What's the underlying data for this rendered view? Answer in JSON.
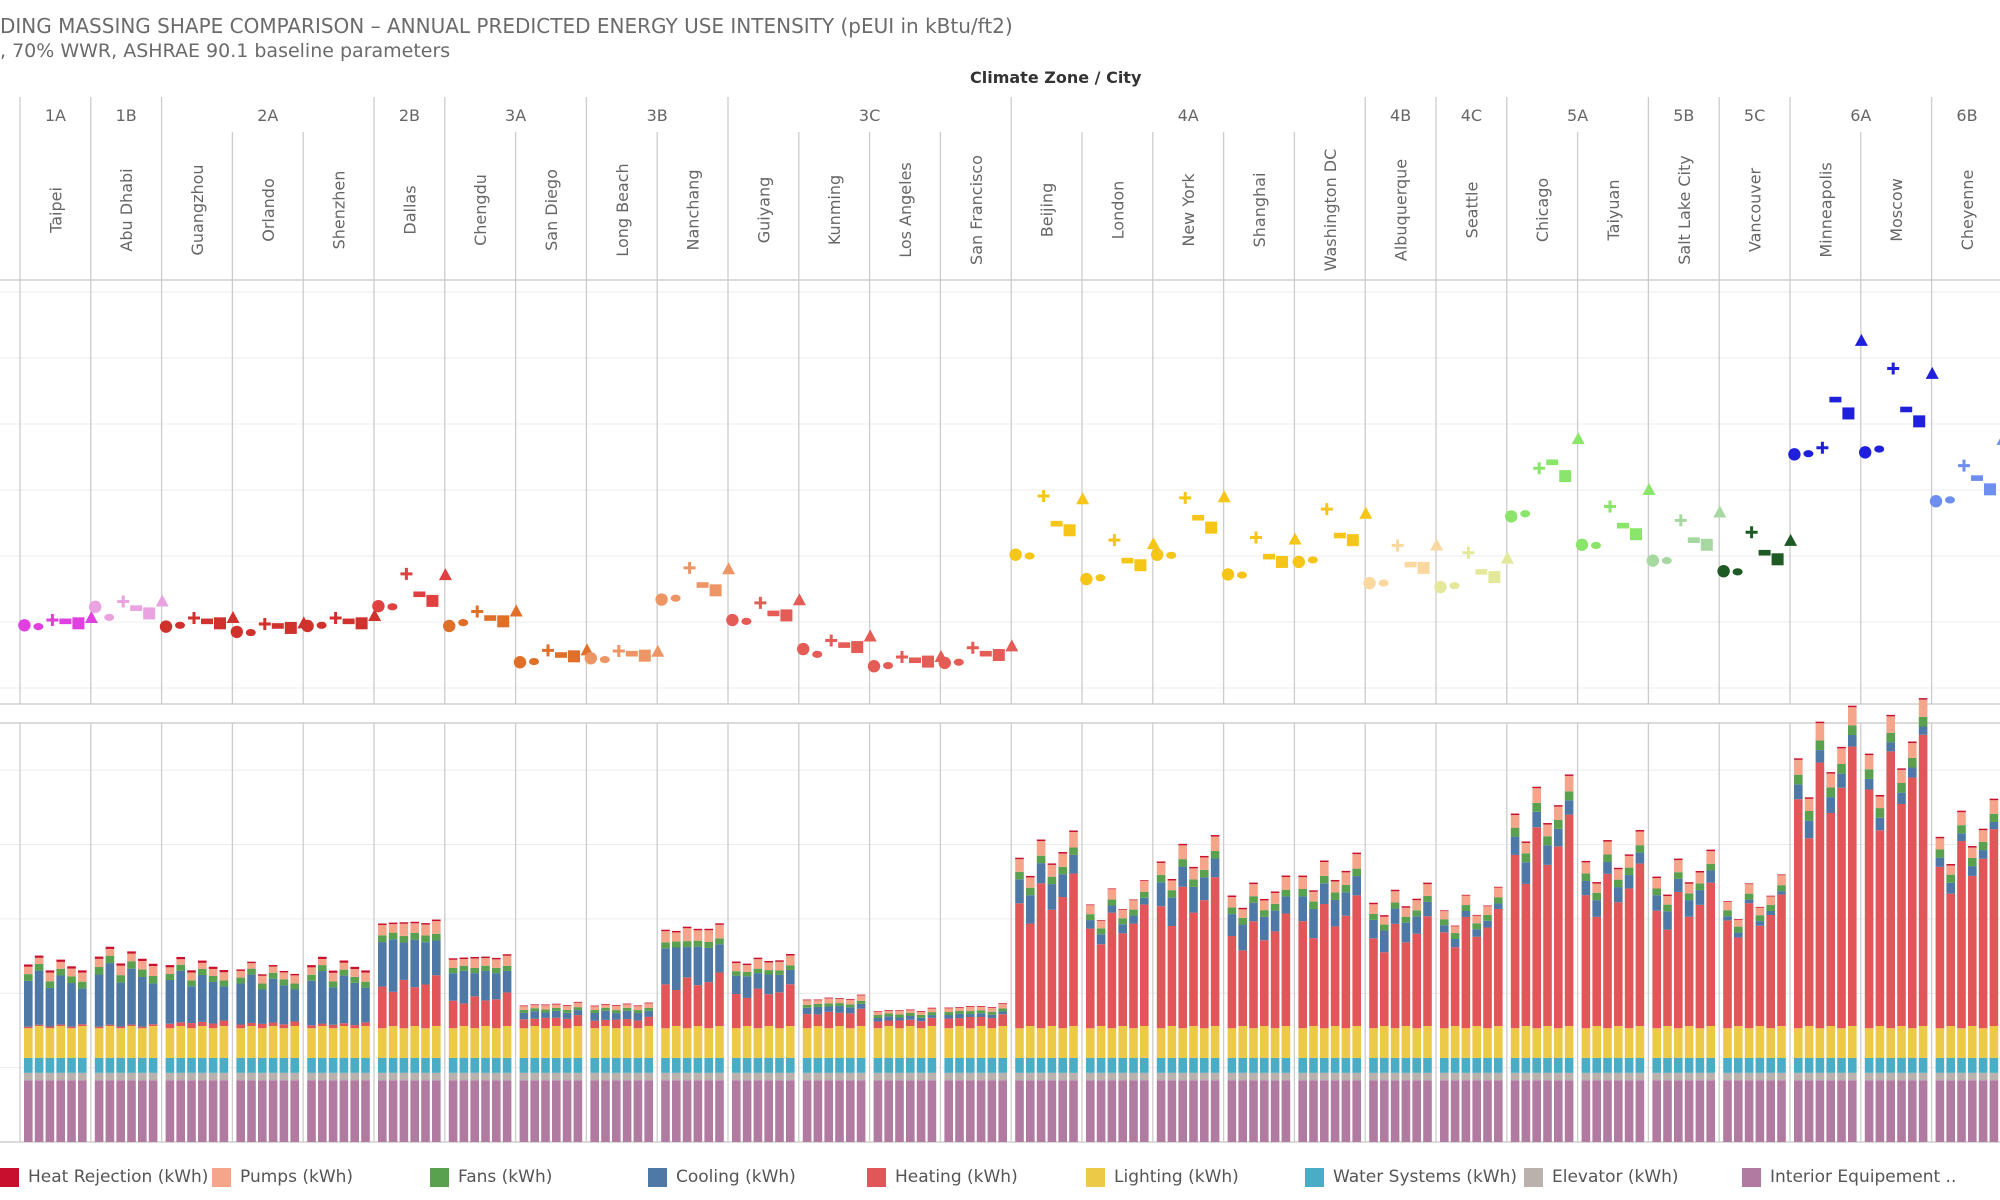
{
  "header": {
    "title": "DING MASSING SHAPE COMPARISON – ANNUAL PREDICTED ENERGY USE INTENSITY (pEUI in kBtu/ft2)",
    "subtitle": ", 70% WWR, ASHRAE 90.1 baseline parameters",
    "column_header": "Climate Zone  /  City"
  },
  "legend": [
    {
      "label": "Heat Rejection (kWh)",
      "color": "#c8102e"
    },
    {
      "label": "Pumps (kWh)",
      "color": "#f4a58a"
    },
    {
      "label": "Fans (kWh)",
      "color": "#59a14f"
    },
    {
      "label": "Cooling (kWh)",
      "color": "#4e79a7"
    },
    {
      "label": "Heating (kWh)",
      "color": "#e15759"
    },
    {
      "label": "Lighting (kWh)",
      "color": "#edc948"
    },
    {
      "label": "Water Systems (kWh)",
      "color": "#4bacc6"
    },
    {
      "label": "Elevator (kWh)",
      "color": "#bab0ac"
    },
    {
      "label": "Interior Equipement ..",
      "color": "#b07aa1"
    }
  ],
  "chart_data": {
    "type": "scatter+stacked-bar",
    "climate_zones": [
      {
        "zone": "1A",
        "cities": [
          "Taipei"
        ]
      },
      {
        "zone": "1B",
        "cities": [
          "Abu Dhabi"
        ]
      },
      {
        "zone": "2A",
        "cities": [
          "Guangzhou",
          "Orlando",
          "Shenzhen"
        ]
      },
      {
        "zone": "2B",
        "cities": [
          "Dallas"
        ]
      },
      {
        "zone": "3A",
        "cities": [
          "Chengdu",
          "San Diego"
        ]
      },
      {
        "zone": "3B",
        "cities": [
          "Long Beach",
          "Nanchang"
        ]
      },
      {
        "zone": "3C",
        "cities": [
          "Guiyang",
          "Kunming",
          "Los Angeles",
          "San Francisco"
        ]
      },
      {
        "zone": "4A",
        "cities": [
          "Beijing",
          "London",
          "New York",
          "Shanghai",
          "Washington DC"
        ]
      },
      {
        "zone": "4B",
        "cities": [
          "Albuquerque"
        ]
      },
      {
        "zone": "4C",
        "cities": [
          "Seattle"
        ]
      },
      {
        "zone": "5A",
        "cities": [
          "Chicago",
          "Taiyuan"
        ]
      },
      {
        "zone": "5B",
        "cities": [
          "Salt Lake City"
        ]
      },
      {
        "zone": "5C",
        "cities": [
          "Vancouver"
        ]
      },
      {
        "zone": "6A",
        "cities": [
          "Minneapolis",
          "Moscow"
        ]
      },
      {
        "zone": "6B",
        "cities": [
          "Cheyenne"
        ]
      }
    ],
    "shape_markers": [
      "circle",
      "ellipse",
      "plus",
      "dash",
      "square",
      "triangle"
    ],
    "scatter_eui": [
      {
        "city": "Taipei",
        "color": "#e040e0",
        "values": [
          19.5,
          19.3,
          20.3,
          20.1,
          19.8,
          20.6
        ]
      },
      {
        "city": "Abu Dhabi",
        "color": "#e9a3e0",
        "values": [
          22.3,
          20.7,
          23.1,
          22.1,
          21.3,
          23.1
        ]
      },
      {
        "city": "Guangzhou",
        "color": "#d0312d",
        "values": [
          19.3,
          19.5,
          20.6,
          20.1,
          19.8,
          20.6
        ]
      },
      {
        "city": "Orlando",
        "color": "#d0312d",
        "values": [
          18.5,
          18.4,
          19.7,
          19.4,
          19.1,
          19.8
        ]
      },
      {
        "city": "Shenzhen",
        "color": "#d0312d",
        "values": [
          19.4,
          19.5,
          20.6,
          20.1,
          19.8,
          20.9
        ]
      },
      {
        "city": "Dallas",
        "color": "#e04040",
        "values": [
          22.4,
          22.3,
          27.3,
          24.2,
          23.2,
          27.1
        ]
      },
      {
        "city": "Chengdu",
        "color": "#e06f2a",
        "values": [
          19.4,
          19.9,
          21.6,
          20.6,
          20.1,
          21.6
        ]
      },
      {
        "city": "San Diego",
        "color": "#e06f2a",
        "values": [
          13.9,
          14.0,
          15.7,
          15.0,
          14.8,
          15.7
        ]
      },
      {
        "city": "Long Beach",
        "color": "#ee9566",
        "values": [
          14.5,
          14.3,
          15.6,
          15.2,
          14.9,
          15.5
        ]
      },
      {
        "city": "Nanchang",
        "color": "#ee9566",
        "values": [
          23.4,
          23.6,
          28.2,
          25.6,
          24.8,
          28.0
        ]
      },
      {
        "city": "Guiyang",
        "color": "#e55b55",
        "values": [
          20.3,
          20.1,
          22.9,
          21.3,
          21.0,
          23.3
        ]
      },
      {
        "city": "Kunming",
        "color": "#e55b55",
        "values": [
          15.9,
          15.1,
          17.2,
          16.5,
          16.2,
          17.8
        ]
      },
      {
        "city": "Los Angeles",
        "color": "#e55b55",
        "values": [
          13.3,
          13.4,
          14.7,
          14.2,
          14.0,
          14.7
        ]
      },
      {
        "city": "San Francisco",
        "color": "#e55b55",
        "values": [
          13.8,
          13.9,
          16.1,
          15.2,
          15.0,
          16.3
        ]
      },
      {
        "city": "Beijing",
        "color": "#f5c518",
        "values": [
          30.2,
          30.0,
          39.1,
          34.9,
          33.9,
          38.6
        ]
      },
      {
        "city": "London",
        "color": "#f5c518",
        "values": [
          26.5,
          26.7,
          32.4,
          29.3,
          28.6,
          31.8
        ]
      },
      {
        "city": "New York",
        "color": "#f5c518",
        "values": [
          30.2,
          30.1,
          38.8,
          35.8,
          34.3,
          38.9
        ]
      },
      {
        "city": "Shanghai",
        "color": "#f5c518",
        "values": [
          27.2,
          27.1,
          32.8,
          29.9,
          29.1,
          32.5
        ]
      },
      {
        "city": "Washington DC",
        "color": "#f5c518",
        "values": [
          29.1,
          29.4,
          37.1,
          33.1,
          32.4,
          36.4
        ]
      },
      {
        "city": "Albuquerque",
        "color": "#fbd8a0",
        "values": [
          25.9,
          25.9,
          31.6,
          28.7,
          28.2,
          31.6
        ]
      },
      {
        "city": "Seattle",
        "color": "#e4e89a",
        "values": [
          25.3,
          25.5,
          30.5,
          27.6,
          26.8,
          29.6
        ]
      },
      {
        "city": "Chicago",
        "color": "#8ae66a",
        "values": [
          36.0,
          36.4,
          43.3,
          44.2,
          42.1,
          47.7
        ]
      },
      {
        "city": "Taiyuan",
        "color": "#8ae66a",
        "values": [
          31.7,
          31.6,
          37.5,
          34.6,
          33.3,
          40.0
        ]
      },
      {
        "city": "Salt Lake City",
        "color": "#a8d8a2",
        "values": [
          29.3,
          29.3,
          35.4,
          32.4,
          31.7,
          36.6
        ]
      },
      {
        "city": "Vancouver",
        "color": "#1e5a23",
        "values": [
          27.7,
          27.6,
          33.6,
          30.5,
          29.5,
          32.3
        ]
      },
      {
        "city": "Minneapolis",
        "color": "#1f1fdc",
        "values": [
          45.4,
          45.5,
          46.4,
          53.7,
          51.6,
          62.6
        ]
      },
      {
        "city": "Moscow",
        "color": "#1f1fdc",
        "values": [
          45.7,
          46.2,
          58.4,
          52.2,
          50.4,
          57.6
        ]
      },
      {
        "city": "Cheyenne",
        "color": "#6f8ff0",
        "values": [
          38.3,
          38.5,
          43.7,
          41.8,
          40.1,
          47.6
        ]
      }
    ],
    "bar_stack_order": [
      "Interior Equipement ..",
      "Elevator (kWh)",
      "Water Systems (kWh)",
      "Lighting (kWh)",
      "Heating (kWh)",
      "Cooling (kWh)",
      "Fans (kWh)",
      "Pumps (kWh)",
      "Heat Rejection (kWh)"
    ],
    "bars_per_city": 6,
    "bar_base_components": {
      "Interior Equipement ..": 8.3,
      "Elevator (kWh)": 1.0,
      "Water Systems (kWh)": 2.0,
      "Lighting (kWh)": 4.0
    },
    "bar_city_components": [
      {
        "city": "Taipei",
        "heating": 0.2,
        "cooling": 6.5,
        "fans": 0.9,
        "pumps": 1.0,
        "heat_rejection": 0.3
      },
      {
        "city": "Abu Dhabi",
        "heating": 0.2,
        "cooling": 7.4,
        "fans": 1.0,
        "pumps": 1.1,
        "heat_rejection": 0.3
      },
      {
        "city": "Guangzhou",
        "heating": 0.6,
        "cooling": 6.2,
        "fans": 0.8,
        "pumps": 0.9,
        "heat_rejection": 0.3
      },
      {
        "city": "Orlando",
        "heating": 0.5,
        "cooling": 5.8,
        "fans": 0.8,
        "pumps": 0.9,
        "heat_rejection": 0.2
      },
      {
        "city": "Shenzhen",
        "heating": 0.4,
        "cooling": 6.3,
        "fans": 0.8,
        "pumps": 1.0,
        "heat_rejection": 0.3
      },
      {
        "city": "Dallas",
        "heating": 5.6,
        "cooling": 6.3,
        "fans": 0.9,
        "pumps": 1.4,
        "heat_rejection": 0.2
      },
      {
        "city": "Chengdu",
        "heating": 3.7,
        "cooling": 3.9,
        "fans": 0.7,
        "pumps": 1.1,
        "heat_rejection": 0.2
      },
      {
        "city": "San Diego",
        "heating": 1.2,
        "cooling": 0.9,
        "fans": 0.4,
        "pumps": 0.5,
        "heat_rejection": 0.1
      },
      {
        "city": "Long Beach",
        "heating": 1.0,
        "cooling": 1.1,
        "fans": 0.4,
        "pumps": 0.5,
        "heat_rejection": 0.1
      },
      {
        "city": "Nanchang",
        "heating": 5.9,
        "cooling": 5.1,
        "fans": 0.8,
        "pumps": 1.5,
        "heat_rejection": 0.2
      },
      {
        "city": "Guiyang",
        "heating": 4.6,
        "cooling": 2.6,
        "fans": 0.6,
        "pumps": 1.1,
        "heat_rejection": 0.2
      },
      {
        "city": "Kunming",
        "heating": 1.9,
        "cooling": 0.9,
        "fans": 0.4,
        "pumps": 0.6,
        "heat_rejection": 0.1
      },
      {
        "city": "Los Angeles",
        "heating": 0.9,
        "cooling": 0.5,
        "fans": 0.4,
        "pumps": 0.4,
        "heat_rejection": 0.1
      },
      {
        "city": "San Francisco",
        "heating": 1.3,
        "cooling": 0.5,
        "fans": 0.4,
        "pumps": 0.5,
        "heat_rejection": 0.1
      },
      {
        "city": "Beijing",
        "heating": 16.8,
        "cooling": 3.4,
        "fans": 1.0,
        "pumps": 1.7,
        "heat_rejection": 0.2
      },
      {
        "city": "London",
        "heating": 13.4,
        "cooling": 1.2,
        "fans": 0.8,
        "pumps": 1.2,
        "heat_rejection": 0.1
      },
      {
        "city": "New York",
        "heating": 16.4,
        "cooling": 3.4,
        "fans": 1.0,
        "pumps": 1.6,
        "heat_rejection": 0.2
      },
      {
        "city": "Shanghai",
        "heating": 12.4,
        "cooling": 3.1,
        "fans": 0.9,
        "pumps": 1.4,
        "heat_rejection": 0.2
      },
      {
        "city": "Washington DC",
        "heating": 14.4,
        "cooling": 3.5,
        "fans": 1.0,
        "pumps": 1.6,
        "heat_rejection": 0.2
      },
      {
        "city": "Albuquerque",
        "heating": 12.1,
        "cooling": 2.6,
        "fans": 0.8,
        "pumps": 1.3,
        "heat_rejection": 0.2
      },
      {
        "city": "Seattle",
        "heating": 12.9,
        "cooling": 1.0,
        "fans": 0.8,
        "pumps": 1.1,
        "heat_rejection": 0.1
      },
      {
        "city": "Chicago",
        "heating": 23.3,
        "cooling": 2.6,
        "fans": 1.2,
        "pumps": 1.7,
        "heat_rejection": 0.2
      },
      {
        "city": "Taiyuan",
        "heating": 17.9,
        "cooling": 2.0,
        "fans": 1.0,
        "pumps": 1.5,
        "heat_rejection": 0.2
      },
      {
        "city": "Salt Lake City",
        "heating": 15.8,
        "cooling": 2.2,
        "fans": 0.9,
        "pumps": 1.4,
        "heat_rejection": 0.2
      },
      {
        "city": "Vancouver",
        "heating": 14.5,
        "cooling": 0.6,
        "fans": 0.8,
        "pumps": 1.1,
        "heat_rejection": 0.1
      },
      {
        "city": "Minneapolis",
        "heating": 30.8,
        "cooling": 2.1,
        "fans": 1.3,
        "pumps": 2.0,
        "heat_rejection": 0.2
      },
      {
        "city": "Moscow",
        "heating": 32.1,
        "cooling": 1.5,
        "fans": 1.3,
        "pumps": 1.9,
        "heat_rejection": 0.2
      },
      {
        "city": "Cheyenne",
        "heating": 21.7,
        "cooling": 1.3,
        "fans": 1.1,
        "pumps": 1.5,
        "heat_rejection": 0.2
      }
    ],
    "scatter_ylim": [
      10,
      70
    ],
    "bar_ylim": [
      0,
      55
    ],
    "grid": true,
    "legend_position": "bottom"
  }
}
